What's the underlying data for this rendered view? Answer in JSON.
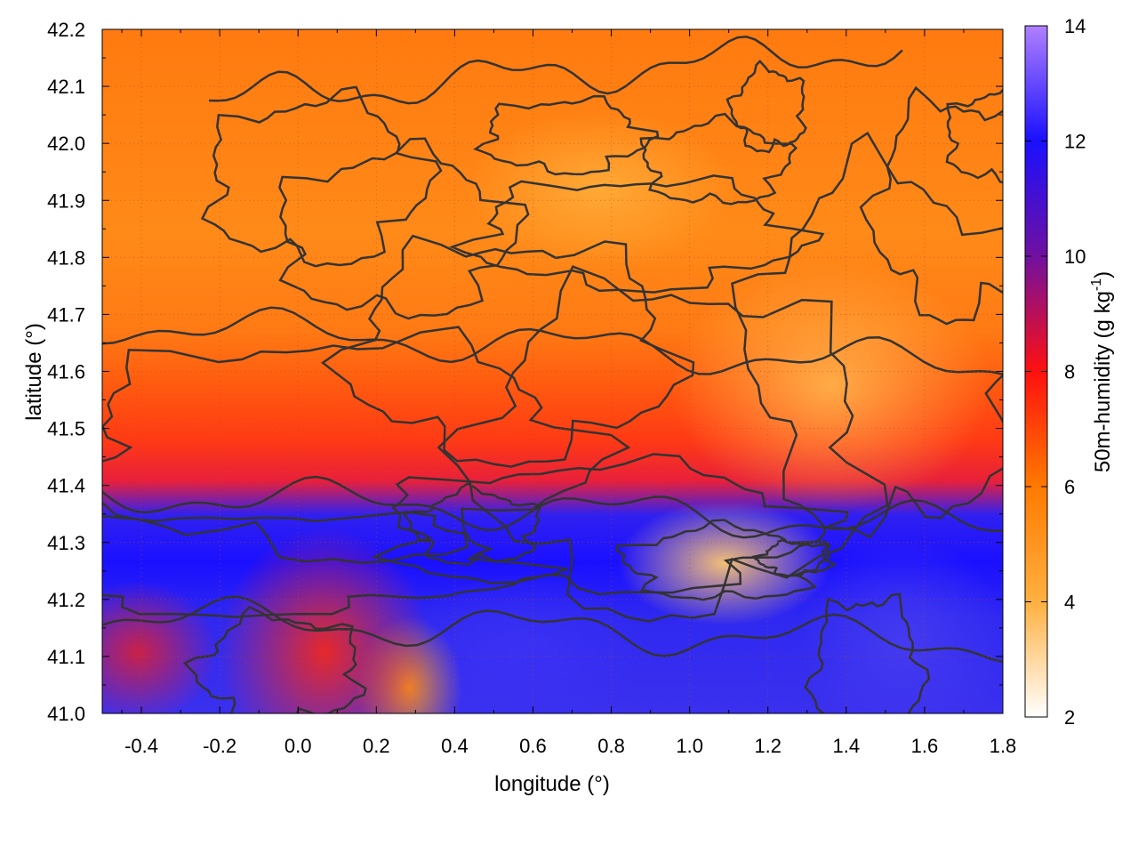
{
  "chart_data": {
    "type": "heatmap",
    "title": "",
    "xlabel": "longitude (°)",
    "ylabel": "latitude (°)",
    "xlim": [
      -0.5,
      1.8
    ],
    "ylim": [
      41.0,
      42.2
    ],
    "x_ticks": [
      -0.4,
      -0.2,
      0.0,
      0.2,
      0.4,
      0.6,
      0.8,
      1.0,
      1.2,
      1.4,
      1.6,
      1.8
    ],
    "x_tick_labels": [
      "-0.4",
      "-0.2",
      "0.0",
      "0.2",
      "0.4",
      "0.6",
      "0.8",
      "1.0",
      "1.2",
      "1.4",
      "1.6",
      "1.8"
    ],
    "y_ticks": [
      41.0,
      41.1,
      41.2,
      41.3,
      41.4,
      41.5,
      41.6,
      41.7,
      41.8,
      41.9,
      42.0,
      42.1,
      42.2
    ],
    "y_tick_labels": [
      "41.0",
      "41.1",
      "41.2",
      "41.3",
      "41.4",
      "41.5",
      "41.6",
      "41.7",
      "41.8",
      "41.9",
      "42.0",
      "42.1",
      "42.2"
    ],
    "grid": true,
    "colorbar": {
      "label": "50m-humidity (g kg",
      "label_sup": "-1",
      "label_end": ")",
      "range": [
        2,
        14
      ],
      "ticks": [
        2,
        4,
        6,
        8,
        10,
        12,
        14
      ],
      "tick_labels": [
        "2",
        "4",
        "6",
        "8",
        "10",
        "12",
        "14"
      ],
      "colors": [
        "#ffffff",
        "#ffb040",
        "#ff7a00",
        "#ff1010",
        "#7010a0",
        "#1a10ff",
        "#b080ff"
      ]
    },
    "contour_color": "#333333"
  }
}
